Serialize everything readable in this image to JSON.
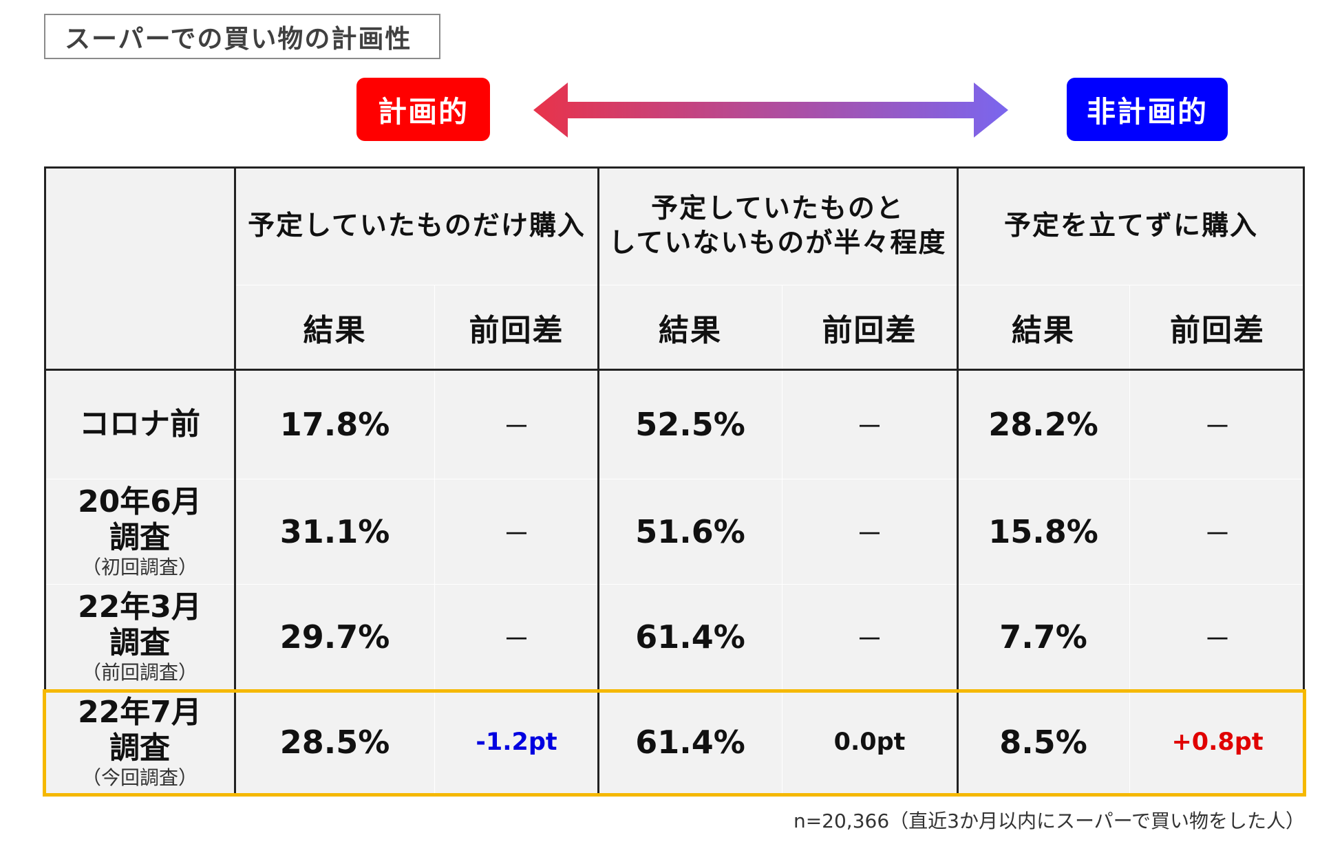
{
  "title": "スーパーでの買い物の計画性",
  "scale": {
    "left_label": "計画的",
    "right_label": "非計画的",
    "colors": {
      "left": "#ff0000",
      "right": "#0000ff",
      "arrow_start": "#e8334a",
      "arrow_end": "#7a66ee"
    }
  },
  "table": {
    "categories": [
      {
        "label_lines": [
          "予定していたものだけ購入"
        ]
      },
      {
        "label_lines": [
          "予定していたものと",
          "していないものが半々程度"
        ]
      },
      {
        "label_lines": [
          "予定を立てずに購入"
        ]
      }
    ],
    "sub_headers": {
      "result": "結果",
      "diff": "前回差"
    },
    "rows": [
      {
        "label_lines": [
          "コロナ前"
        ],
        "sub": "",
        "cells": [
          {
            "result": "17.8%",
            "diff": "－"
          },
          {
            "result": "52.5%",
            "diff": "－"
          },
          {
            "result": "28.2%",
            "diff": "－"
          }
        ]
      },
      {
        "label_lines": [
          "20年6月",
          "調査"
        ],
        "sub": "（初回調査）",
        "cells": [
          {
            "result": "31.1%",
            "diff": "－"
          },
          {
            "result": "51.6%",
            "diff": "－"
          },
          {
            "result": "15.8%",
            "diff": "－"
          }
        ]
      },
      {
        "label_lines": [
          "22年3月",
          "調査"
        ],
        "sub": "（前回調査）",
        "cells": [
          {
            "result": "29.7%",
            "diff": "－"
          },
          {
            "result": "61.4%",
            "diff": "－"
          },
          {
            "result": "7.7%",
            "diff": "－"
          }
        ]
      },
      {
        "label_lines": [
          "22年7月",
          "調査"
        ],
        "sub": "（今回調査）",
        "cells": [
          {
            "result": "28.5%",
            "diff": "-1.2pt"
          },
          {
            "result": "61.4%",
            "diff": "0.0pt"
          },
          {
            "result": "8.5%",
            "diff": "+0.8pt"
          }
        ]
      }
    ],
    "highlight_color": "#f5b800"
  },
  "footnote": "n=20,366（直近3か月以内にスーパーで買い物をした人）",
  "chart_data": {
    "type": "table",
    "title": "スーパーでの買い物の計画性",
    "columns": [
      "予定していたものだけ購入",
      "予定していたものと していないものが半々程度",
      "予定を立てずに購入"
    ],
    "rows": [
      "コロナ前",
      "20年6月調査（初回調査）",
      "22年3月調査（前回調査）",
      "22年7月調査（今回調査）"
    ],
    "results_percent": [
      [
        17.8,
        52.5,
        28.2
      ],
      [
        31.1,
        51.6,
        15.8
      ],
      [
        29.7,
        61.4,
        7.7
      ],
      [
        28.5,
        61.4,
        8.5
      ]
    ],
    "diff_pt_latest": [
      -1.2,
      0.0,
      0.8
    ]
  }
}
